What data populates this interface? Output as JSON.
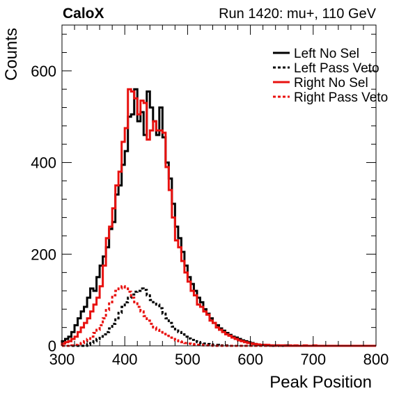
{
  "header": {
    "experiment": "CaloX",
    "run_info": "Run 1420: mu+, 110 GeV"
  },
  "colors": {
    "left": "#000000",
    "right": "#e8110f"
  },
  "chart_data": {
    "type": "line",
    "subtype": "histogram-step",
    "xlabel": "Peak Position",
    "ylabel": "Counts",
    "xlim": [
      300,
      800
    ],
    "ylim": [
      0,
      700
    ],
    "x_ticks": [
      300,
      400,
      500,
      600,
      700,
      800
    ],
    "x_tick_labels": [
      "300",
      "400",
      "500",
      "600",
      "700",
      "800"
    ],
    "y_ticks": [
      0,
      200,
      400,
      600
    ],
    "y_tick_labels": [
      "0",
      "200",
      "400",
      "600"
    ],
    "grid": false,
    "legend_position": "top-right",
    "bin_width": 5,
    "bin_start": 300,
    "series": [
      {
        "name": "Left No Sel",
        "color": "#000000",
        "dashed": false,
        "values": [
          10,
          15,
          20,
          30,
          45,
          60,
          75,
          85,
          105,
          125,
          120,
          150,
          175,
          195,
          215,
          255,
          270,
          330,
          350,
          395,
          425,
          500,
          505,
          560,
          490,
          510,
          460,
          555,
          520,
          490,
          460,
          520,
          455,
          400,
          365,
          310,
          260,
          235,
          205,
          175,
          150,
          135,
          120,
          105,
          95,
          80,
          70,
          60,
          50,
          45,
          38,
          33,
          28,
          24,
          20,
          18,
          15,
          12,
          10,
          8,
          6,
          4,
          3,
          2,
          2,
          1,
          1,
          0,
          1,
          0,
          0,
          1,
          0,
          0,
          0,
          0,
          0,
          0,
          0,
          0,
          0,
          0,
          0,
          0,
          0,
          0,
          0,
          0,
          0,
          0,
          0,
          0,
          0,
          0,
          0,
          0,
          0,
          0,
          0,
          0
        ]
      },
      {
        "name": "Left Pass Veto",
        "color": "#000000",
        "dashed": true,
        "values": [
          0,
          0,
          0,
          0,
          0,
          0,
          0,
          0,
          3,
          6,
          10,
          15,
          20,
          25,
          30,
          38,
          48,
          60,
          72,
          85,
          95,
          105,
          112,
          118,
          120,
          125,
          122,
          110,
          100,
          95,
          90,
          82,
          70,
          60,
          50,
          42,
          36,
          30,
          25,
          20,
          16,
          13,
          10,
          8,
          6,
          5,
          4,
          3,
          2,
          2,
          1,
          1,
          1,
          0,
          0,
          0,
          0,
          0,
          0,
          0,
          0,
          0,
          0,
          0,
          0,
          0,
          0,
          0,
          0,
          0,
          0,
          0,
          0,
          0,
          0,
          0,
          0,
          0,
          0,
          0,
          0,
          0,
          0,
          0,
          0,
          0,
          0,
          0,
          0,
          0,
          0,
          0,
          0,
          0,
          0,
          0,
          0,
          0,
          0,
          0
        ]
      },
      {
        "name": "Right No Sel",
        "color": "#e8110f",
        "dashed": false,
        "values": [
          5,
          8,
          10,
          15,
          20,
          30,
          40,
          50,
          60,
          75,
          90,
          105,
          130,
          175,
          235,
          260,
          300,
          350,
          380,
          445,
          475,
          560,
          555,
          540,
          505,
          535,
          530,
          450,
          470,
          490,
          470,
          470,
          465,
          390,
          340,
          280,
          230,
          215,
          185,
          160,
          140,
          120,
          110,
          90,
          85,
          75,
          68,
          55,
          50,
          40,
          35,
          30,
          25,
          22,
          18,
          15,
          12,
          10,
          8,
          6,
          5,
          4,
          3,
          2,
          2,
          2,
          1,
          1,
          1,
          1,
          1,
          0,
          1,
          0,
          1,
          0,
          0,
          1,
          0,
          0,
          1,
          0,
          0,
          0,
          0,
          0,
          0,
          0,
          0,
          0,
          0,
          0,
          0,
          0,
          0,
          0,
          0,
          0,
          0,
          0
        ]
      },
      {
        "name": "Right Pass Veto",
        "color": "#e8110f",
        "dashed": true,
        "values": [
          0,
          0,
          0,
          1,
          2,
          4,
          6,
          10,
          15,
          20,
          28,
          35,
          45,
          60,
          78,
          95,
          110,
          120,
          125,
          130,
          125,
          118,
          105,
          95,
          85,
          75,
          65,
          55,
          48,
          40,
          35,
          30,
          26,
          22,
          18,
          15,
          12,
          10,
          8,
          6,
          5,
          4,
          3,
          2,
          2,
          1,
          1,
          1,
          0,
          0,
          0,
          0,
          0,
          0,
          0,
          0,
          0,
          0,
          0,
          0,
          0,
          0,
          0,
          0,
          0,
          0,
          0,
          0,
          0,
          0,
          0,
          0,
          0,
          0,
          0,
          0,
          0,
          0,
          0,
          0,
          0,
          0,
          0,
          0,
          0,
          0,
          0,
          0,
          0,
          0,
          0,
          0,
          0,
          0,
          0,
          0,
          0,
          0,
          0,
          0
        ]
      }
    ]
  }
}
